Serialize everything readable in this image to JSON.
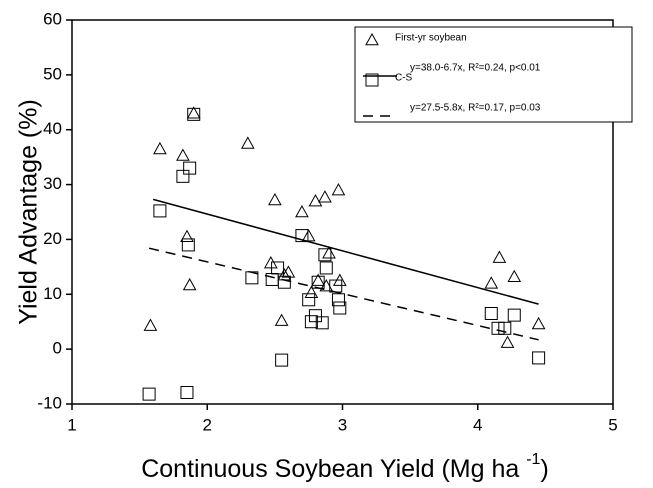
{
  "chart_data": {
    "type": "scatter",
    "xlabel": [
      "Continuous Soybean Yield (Mg ha ",
      "-1",
      ")"
    ],
    "ylabel": "Yield Advantage (%)",
    "xlim": [
      1,
      5
    ],
    "xticks": [
      1,
      2,
      3,
      4,
      5
    ],
    "ylim": [
      -10,
      60
    ],
    "yticks": [
      -10,
      0,
      10,
      20,
      30,
      40,
      50,
      60
    ],
    "grid": false,
    "legend": "upper right",
    "series": [
      {
        "name": "First-yr soybean",
        "kind": "points",
        "marker": "triangle",
        "color": "#000",
        "x": [
          1.58,
          1.65,
          1.82,
          1.85,
          1.87,
          1.9,
          2.3,
          2.47,
          2.5,
          2.55,
          2.57,
          2.6,
          2.7,
          2.75,
          2.77,
          2.8,
          2.82,
          2.87,
          2.88,
          2.9,
          2.97,
          2.98,
          4.1,
          4.16,
          4.22,
          4.27,
          4.45
        ],
        "values": [
          4.3,
          36.5,
          35.3,
          20.5,
          11.7,
          43,
          37.5,
          15.7,
          27.2,
          5.2,
          13.5,
          14,
          25,
          20.6,
          10.3,
          27,
          12.5,
          27.7,
          11.5,
          17.5,
          29,
          12.5,
          12,
          16.7,
          1.2,
          13.2,
          4.6
        ]
      },
      {
        "name": "y=38.0-6.7x, R²=0.24, p<0.01",
        "kind": "line",
        "dash": false,
        "color": "#000",
        "x": [
          1.6,
          4.45
        ],
        "values": [
          27.3,
          8.2
        ]
      },
      {
        "name": "C-S",
        "kind": "points",
        "marker": "square",
        "color": "#000",
        "x": [
          1.57,
          1.65,
          1.82,
          1.85,
          1.86,
          1.87,
          1.9,
          2.33,
          2.48,
          2.52,
          2.55,
          2.57,
          2.7,
          2.75,
          2.77,
          2.8,
          2.82,
          2.85,
          2.87,
          2.88,
          2.95,
          2.97,
          2.98,
          4.1,
          4.15,
          4.2,
          4.27,
          4.45
        ],
        "values": [
          -8.2,
          25.2,
          31.5,
          -7.9,
          19,
          33,
          42.8,
          13,
          12.7,
          14.8,
          -2,
          12.2,
          20.7,
          9,
          5,
          6.1,
          12.2,
          4.8,
          17.2,
          14.8,
          11.5,
          9,
          7.5,
          6.5,
          3.8,
          3.8,
          6.2,
          -1.6
        ]
      },
      {
        "name": "y=27.5-5.8x, R²=0.17, p=0.03",
        "kind": "line",
        "dash": true,
        "color": "#000",
        "x": [
          1.57,
          4.45
        ],
        "values": [
          18.4,
          1.7
        ]
      }
    ]
  }
}
